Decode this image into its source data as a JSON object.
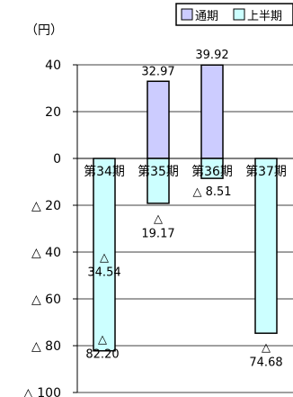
{
  "chart_data": {
    "type": "bar",
    "unit_label": "（円）",
    "categories": [
      "第34期",
      "第35期",
      "第36期",
      "第37期"
    ],
    "series": [
      {
        "name": "通期",
        "color": "#ccccff",
        "values": [
          null,
          32.97,
          39.92,
          null
        ]
      },
      {
        "name": "上半期",
        "color": "#ccffff",
        "values": [
          -82.2,
          -19.17,
          -8.51,
          -74.68
        ]
      }
    ],
    "data_labels": {
      "full_year": [
        "",
        "32.97",
        "39.92",
        ""
      ],
      "half_year": [
        "△\n34.54",
        "△\n19.17",
        "△ 8.51",
        "△\n74.68"
      ],
      "half_year_value": [
        "△\n82.20",
        "",
        "",
        ""
      ]
    },
    "yticks": [
      {
        "value": 40,
        "label": "40"
      },
      {
        "value": 20,
        "label": "20"
      },
      {
        "value": 0,
        "label": "0"
      },
      {
        "value": -20,
        "label": "△ 20"
      },
      {
        "value": -40,
        "label": "△ 40"
      },
      {
        "value": -60,
        "label": "△ 60"
      },
      {
        "value": -80,
        "label": "△ 80"
      },
      {
        "value": -100,
        "label": "△ 100"
      }
    ],
    "ylim": [
      -100,
      40
    ],
    "grid": true,
    "legend_position": "top-right"
  }
}
